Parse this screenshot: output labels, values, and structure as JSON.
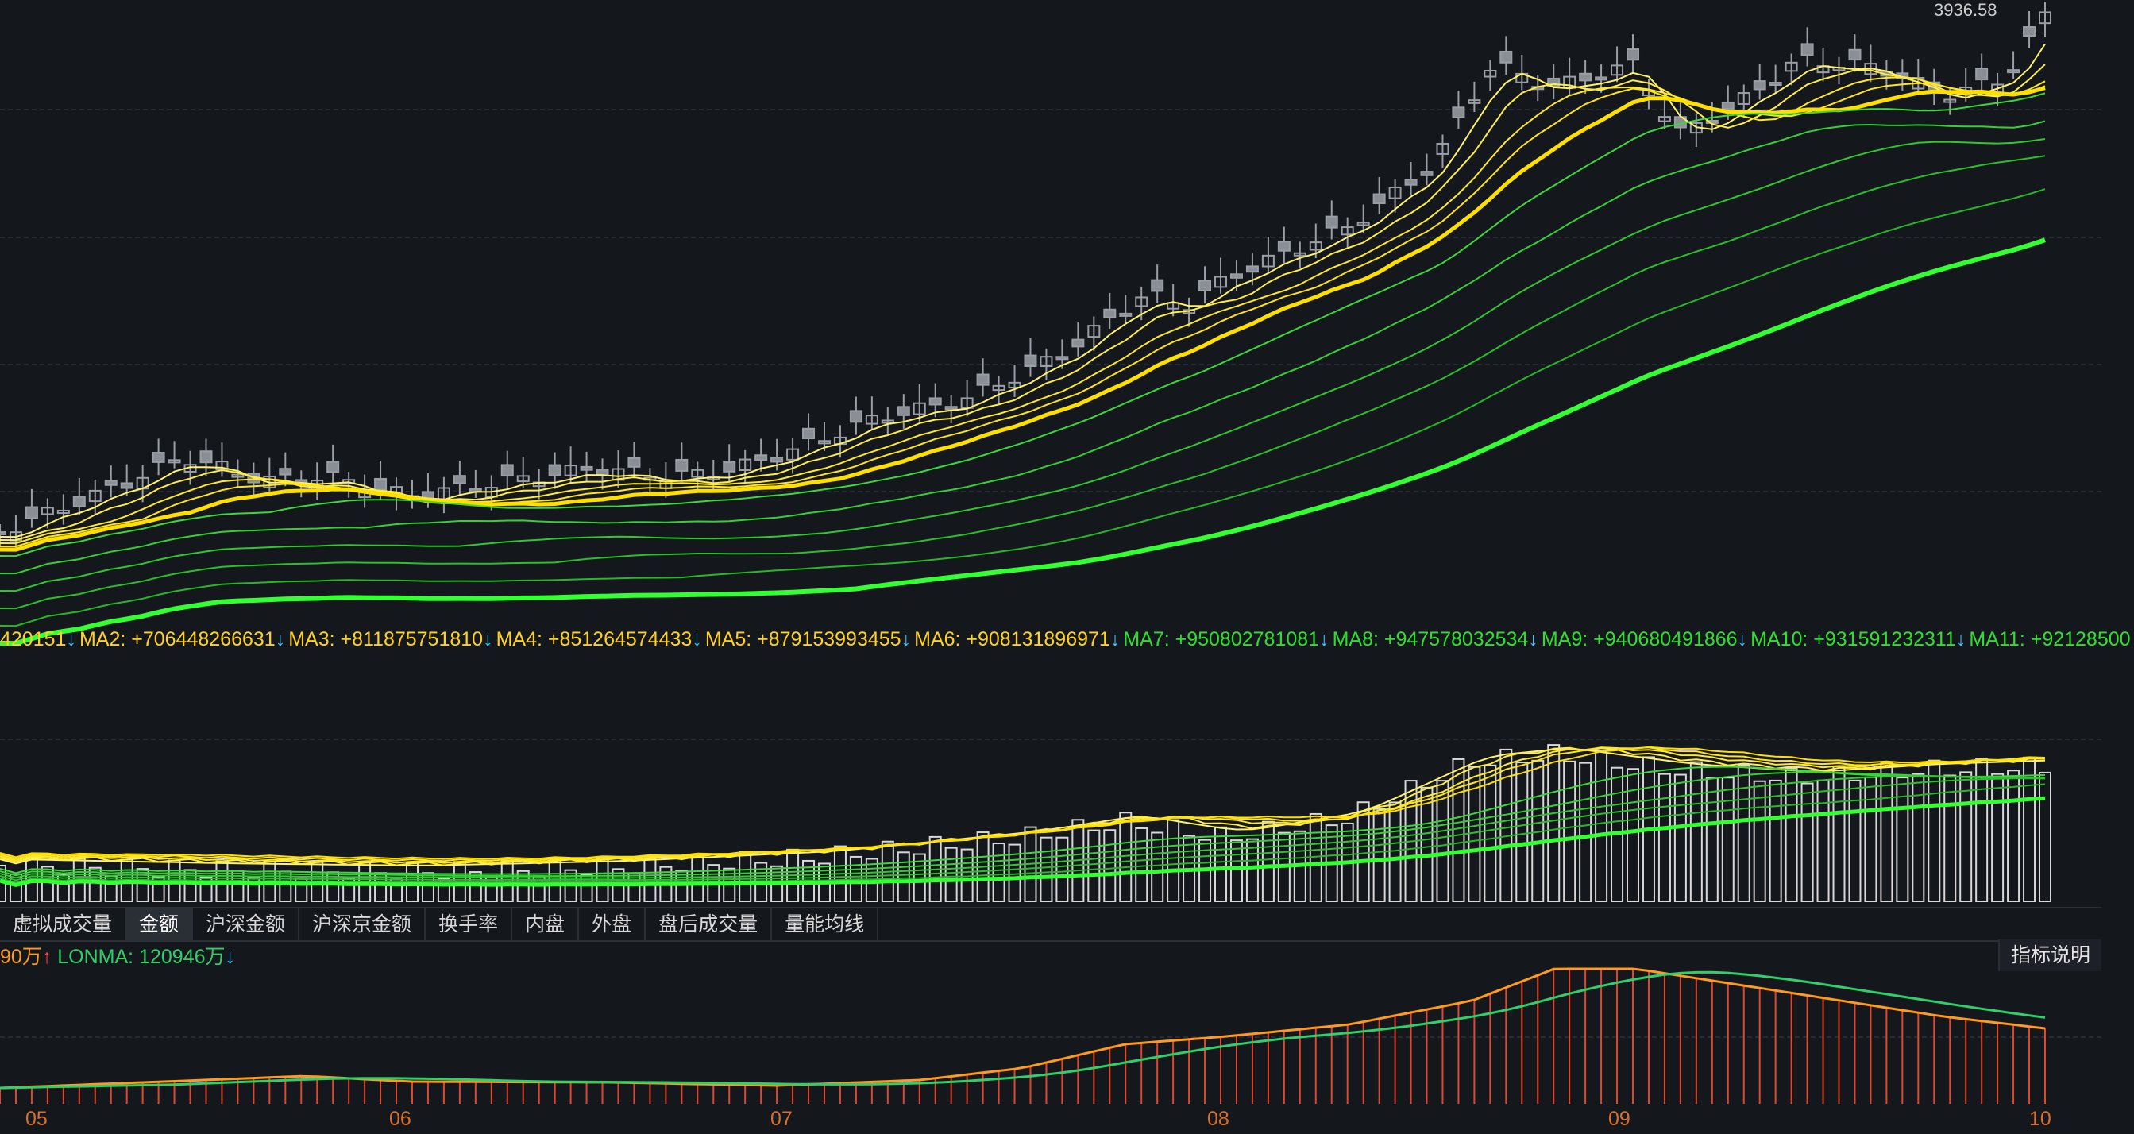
{
  "price_panel": {
    "max_label": "3936.58",
    "ma_colors_yellow": "#ffee2a",
    "ma_colors_green": "#2dd52d",
    "candle_color": "#8a8f96"
  },
  "ma_bar": {
    "items": [
      {
        "text": "420151",
        "arrow": "↓",
        "color": "#ffd21f",
        "arrow_color": "#3ec3ff"
      },
      {
        "text": "MA2: +706448266631",
        "arrow": "↓",
        "color": "#ffd21f",
        "arrow_color": "#3ec3ff"
      },
      {
        "text": "MA3: +811875751810",
        "arrow": "↓",
        "color": "#ffd21f",
        "arrow_color": "#3ec3ff"
      },
      {
        "text": "MA4: +851264574433",
        "arrow": "↓",
        "color": "#ffd21f",
        "arrow_color": "#3ec3ff"
      },
      {
        "text": "MA5: +879153993455",
        "arrow": "↓",
        "color": "#ffd21f",
        "arrow_color": "#3ec3ff"
      },
      {
        "text": "MA6: +908131896971",
        "arrow": "↓",
        "color": "#ffd21f",
        "arrow_color": "#3ec3ff"
      },
      {
        "text": "MA7: +950802781081",
        "arrow": "↓",
        "color": "#2ee02e",
        "arrow_color": "#3ec3ff"
      },
      {
        "text": "MA8: +947578032534",
        "arrow": "↓",
        "color": "#2ee02e",
        "arrow_color": "#3ec3ff"
      },
      {
        "text": "MA9: +940680491866",
        "arrow": "↓",
        "color": "#2ee02e",
        "arrow_color": "#3ec3ff"
      },
      {
        "text": "MA10: +931591232311",
        "arrow": "↓",
        "color": "#2ee02e",
        "arrow_color": "#3ec3ff"
      },
      {
        "text": "MA11: +92128500",
        "arrow": "",
        "color": "#2ee02e",
        "arrow_color": "#3ec3ff"
      }
    ]
  },
  "tabs": [
    {
      "label": "虚拟成交量",
      "active": false
    },
    {
      "label": "金额",
      "active": true
    },
    {
      "label": "沪深金额",
      "active": false
    },
    {
      "label": "沪深京金额",
      "active": false
    },
    {
      "label": "换手率",
      "active": false
    },
    {
      "label": "内盘",
      "active": false
    },
    {
      "label": "外盘",
      "active": false
    },
    {
      "label": "盘后成交量",
      "active": false
    },
    {
      "label": "量能均线",
      "active": false
    }
  ],
  "volume_indicator": {
    "first": "90万",
    "first_arrow": "↑",
    "first_color": "#ff9a1f",
    "first_arrow_color": "#ff4040",
    "second": "LONMA: 120946万",
    "second_arrow": "↓",
    "second_color": "#2fcf6a",
    "second_arrow_color": "#3ec3ff"
  },
  "explain_button": "指标说明",
  "date_axis": [
    "05",
    "06",
    "07",
    "08",
    "09",
    "10"
  ]
}
